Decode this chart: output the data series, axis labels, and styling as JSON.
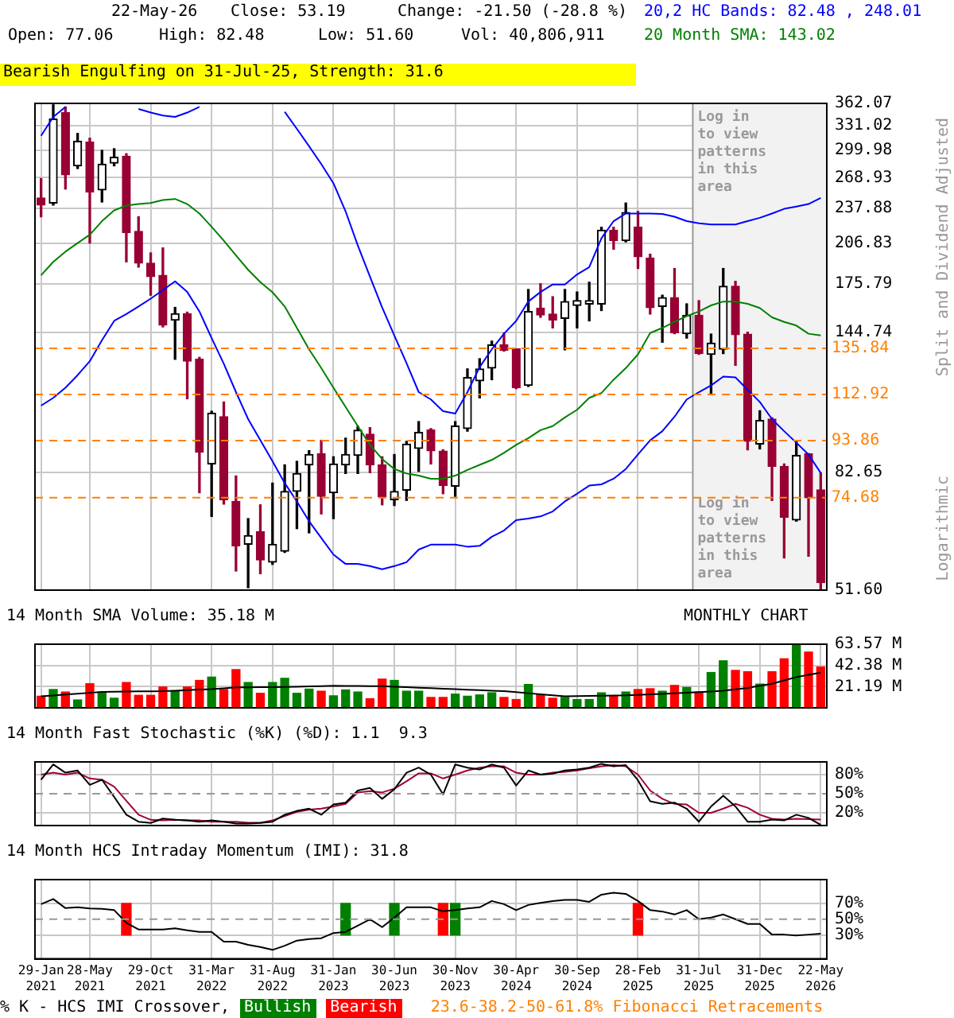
{
  "chart_data": [
    {
      "type": "candlestick",
      "categories": [
        "29-Jan 2021",
        null,
        null,
        null,
        "28-May 2021",
        null,
        null,
        null,
        null,
        "29-Oct 2021",
        null,
        null,
        null,
        null,
        "31-Mar 2022",
        null,
        null,
        null,
        null,
        "31-Aug 2022",
        null,
        null,
        null,
        null,
        "31-Jan 2023",
        null,
        null,
        null,
        null,
        "30-Jun 2023",
        null,
        null,
        null,
        null,
        "30-Nov 2023",
        null,
        null,
        null,
        null,
        "30-Apr 2024",
        null,
        null,
        null,
        null,
        "30-Sep 2024",
        null,
        null,
        null,
        null,
        "28-Feb 2025",
        null,
        null,
        null,
        null,
        "31-Jul 2025",
        null,
        null,
        null,
        null,
        "31-Dec 2025",
        null,
        null,
        null,
        null,
        "22-May 2026"
      ],
      "colors": [
        "#990033",
        "#000000",
        "#990033",
        "#000000",
        "#990033",
        "#000000",
        "#000000",
        "#990033",
        "#990033",
        "#990033",
        "#990033",
        "#000000",
        "#990033",
        "#990033",
        "#000000",
        "#990033",
        "#990033",
        "#000000",
        "#990033",
        "#000000",
        "#000000",
        "#000000",
        "#000000",
        "#990033",
        "#000000",
        "#000000",
        "#000000",
        "#990033",
        "#990033",
        "#000000",
        "#000000",
        "#000000",
        "#990033",
        "#990033",
        "#000000",
        "#000000",
        "#000000",
        "#000000",
        "#990033",
        "#990033",
        "#000000",
        "#990033",
        "#990033",
        "#000000",
        "#000000",
        "#000000",
        "#000000",
        "#990033",
        "#000000",
        "#990033",
        "#990033",
        "#000000",
        "#990033",
        "#000000",
        "#990033",
        "#000000",
        "#000000",
        "#990033",
        "#990033",
        "#000000",
        "#990033",
        "#990033",
        "#000000",
        "#990033",
        "#990033"
      ],
      "ohlc": [
        [
          248,
          268,
          230,
          241
        ],
        [
          243,
          360,
          241,
          340
        ],
        [
          349,
          357,
          257,
          272
        ],
        [
          282,
          321,
          279,
          311
        ],
        [
          310,
          315,
          207,
          254
        ],
        [
          256,
          300,
          244,
          284
        ],
        [
          285,
          302,
          282,
          292
        ],
        [
          293,
          296,
          192,
          216
        ],
        [
          217,
          230,
          188,
          191
        ],
        [
          191,
          199,
          168,
          181
        ],
        [
          182,
          203,
          148,
          149
        ],
        [
          152,
          160,
          130,
          156
        ],
        [
          156,
          157,
          111,
          129
        ],
        [
          130,
          131,
          76.2,
          89.6
        ],
        [
          85.5,
          105.6,
          69.3,
          104.8
        ],
        [
          103.3,
          109.6,
          72.8,
          74.1
        ],
        [
          73.6,
          81.5,
          55.7,
          61.6
        ],
        [
          62,
          68.7,
          52.1,
          64.2
        ],
        [
          65.2,
          72.6,
          55.1,
          58.2
        ],
        [
          57.7,
          79.2,
          57.2,
          62
        ],
        [
          60.3,
          85.2,
          60,
          76.6
        ],
        [
          76.6,
          86.4,
          66,
          82.3
        ],
        [
          85.2,
          90.2,
          64.9,
          88.8
        ],
        [
          89.1,
          94,
          70,
          75.1
        ],
        [
          76.2,
          88,
          68.7,
          85.5
        ],
        [
          85.2,
          94.8,
          82.3,
          88.8
        ],
        [
          88.5,
          99.4,
          82.3,
          97.9
        ],
        [
          96.3,
          98.9,
          82.6,
          85.2
        ],
        [
          85.2,
          88,
          72.6,
          74.9
        ],
        [
          74.1,
          88.8,
          72.4,
          76.6
        ],
        [
          77,
          93.6,
          73.9,
          92.6
        ],
        [
          91,
          101.3,
          83,
          97
        ],
        [
          98,
          98.5,
          85.5,
          90.1
        ],
        [
          90,
          90.5,
          75.9,
          78.4
        ],
        [
          78.2,
          101.3,
          75.1,
          99.5
        ],
        [
          98.5,
          125.1,
          97.5,
          120.9
        ],
        [
          119.3,
          130.3,
          111.4,
          125.1
        ],
        [
          125.5,
          139.8,
          119.8,
          137.7
        ],
        [
          137.7,
          144.4,
          134.3,
          134.8
        ],
        [
          135.5,
          135.5,
          115.6,
          116
        ],
        [
          117.1,
          171.9,
          116.6,
          157.4
        ],
        [
          159.6,
          175.9,
          153.8,
          155.2
        ],
        [
          155.8,
          167,
          147.4,
          152.2
        ],
        [
          153.1,
          171.9,
          135,
          163.8
        ],
        [
          161.3,
          170.2,
          147.4,
          164.4
        ],
        [
          162.2,
          177,
          151.6,
          164.4
        ],
        [
          162.2,
          220.5,
          158,
          218
        ],
        [
          218,
          220.5,
          202,
          209
        ],
        [
          209,
          243,
          208,
          234
        ],
        [
          220.5,
          235,
          187,
          196
        ],
        [
          195,
          198,
          155.8,
          159.9
        ],
        [
          160.6,
          168,
          139.2,
          166.4
        ],
        [
          166.4,
          187,
          144,
          144.6
        ],
        [
          144,
          162.3,
          141.5,
          155
        ],
        [
          155,
          164.4,
          132.6,
          133
        ],
        [
          132.6,
          143.8,
          113.1,
          138.7
        ],
        [
          135.3,
          187,
          133,
          174.2
        ],
        [
          174.2,
          177.6,
          126.9,
          143.5
        ],
        [
          143.8,
          144.9,
          90.5,
          93.6
        ],
        [
          92.6,
          105.8,
          90.8,
          101.8
        ],
        [
          102.3,
          102.9,
          73.9,
          84.7
        ],
        [
          84.7,
          85.5,
          58.7,
          69.1
        ],
        [
          68.3,
          93.6,
          68,
          88.5
        ],
        [
          89.1,
          89.1,
          59.1,
          74.69
        ],
        [
          77.06,
          82.48,
          51.6,
          53.19
        ]
      ],
      "series": [
        {
          "type": "line",
          "name": "20,2 HC Bands: 82.48 , 248.01",
          "color": "#0000ff",
          "values": [
            318,
            343,
            357,
            null,
            null,
            null,
            null,
            null,
            354,
            349,
            345,
            343,
            349,
            357,
            null,
            null,
            null,
            null,
            null,
            null,
            350,
            327,
            305,
            284,
            263,
            235,
            205,
            181,
            160,
            143,
            128,
            114,
            110.7,
            105.6,
            104.6,
            114,
            126,
            135.3,
            144,
            151.6,
            163.8,
            170.2,
            175.4,
            175.4,
            182.6,
            188,
            211,
            226,
            233,
            233,
            233,
            232.6,
            230,
            226,
            224,
            223,
            223,
            223,
            226,
            229,
            233,
            237.4,
            239.6,
            242,
            248.01
          ]
        },
        {
          "type": "line",
          "color": "#0000ff",
          "values": [
            108,
            111.4,
            116,
            122,
            129,
            140.3,
            151.6,
            155.8,
            160.6,
            165.7,
            171.5,
            177.6,
            170.2,
            157.4,
            141.5,
            127.7,
            114,
            102.3,
            94,
            86.4,
            79.2,
            73.6,
            68,
            63.6,
            59.5,
            57.3,
            57.3,
            56.8,
            56.1,
            56.8,
            57.7,
            60.7,
            61.9,
            61.9,
            61.9,
            61.4,
            61.6,
            63.9,
            65.5,
            68.3,
            68.7,
            69.3,
            70.7,
            73.6,
            75.9,
            78.4,
            78.8,
            80.6,
            83.8,
            88.8,
            94,
            97.5,
            103.3,
            110.7,
            114,
            117.1,
            121.3,
            120.9,
            115.1,
            109.6,
            102.3,
            97.5,
            93.1,
            88.8,
            82.48
          ]
        },
        {
          "type": "line",
          "name": "20 Month SMA: 143.02",
          "color": "#008000",
          "values": [
            182,
            192,
            200,
            207,
            214,
            226,
            236,
            240.5,
            242,
            243,
            246,
            247,
            242,
            233,
            221,
            209,
            197,
            186,
            177,
            170,
            160.6,
            147.4,
            135.3,
            125.5,
            116,
            107.4,
            99.5,
            92.3,
            87.2,
            83.8,
            82.3,
            81.6,
            80.6,
            80.6,
            81.6,
            83.5,
            85.2,
            86.9,
            89.4,
            92.3,
            94.8,
            97.9,
            99.5,
            103,
            106.2,
            111.4,
            113.6,
            119.8,
            125.5,
            132.6,
            144.4,
            147.4,
            151,
            154.5,
            157.4,
            161.3,
            163.8,
            163.8,
            162.3,
            159.6,
            153.8,
            151,
            148.8,
            144,
            143.02
          ]
        }
      ],
      "ylim": [
        51.6,
        362.07
      ],
      "log": true,
      "yticks": [
        362.07,
        331.02,
        299.98,
        268.93,
        237.88,
        206.83,
        175.79,
        144.74,
        82.65,
        {
          "value": 51.6,
          "label": "51.60"
        }
      ],
      "ref_lines": [
        {
          "axis": "y",
          "value": 135.84,
          "label": "135.84",
          "color": "#ff8000",
          "line_style": "dashed"
        },
        {
          "axis": "y",
          "value": 112.92,
          "label": "112.92",
          "color": "#ff8000",
          "line_style": "dashed"
        },
        {
          "axis": "y",
          "value": 93.86,
          "label": "93.86",
          "color": "#ff8000",
          "line_style": "dashed"
        },
        {
          "axis": "y",
          "value": 74.68,
          "label": "74.68",
          "color": "#ff8000",
          "line_style": "dashed"
        }
      ],
      "bands": [
        {
          "axis": "x",
          "from": "31-Jul 2025",
          "to": "22-May 2026",
          "label": "Log in to view patterns in this area",
          "color": "#f2f2f2"
        }
      ],
      "grid": true,
      "legend": "top right",
      "tick_labels": "y",
      "annotations": [
        "22-May-26",
        "Close: 53.19",
        "Change: -21.50 (-28.8 %)",
        "Open: 77.06",
        "High: 82.48",
        "Low: 51.60",
        "Vol: 40,806,911",
        "Bearish Engulfing on 31-Jul-25, Strength: 31.6",
        "Log in to view patterns in this area",
        "Split and Dividend Adjusted",
        "Logarithmic"
      ]
    },
    {
      "type": "bar",
      "categories": [
        "29-Jan 2021",
        null,
        null,
        null,
        "28-May 2021",
        null,
        null,
        null,
        null,
        "29-Oct 2021",
        null,
        null,
        null,
        null,
        "31-Mar 2022",
        null,
        null,
        null,
        null,
        "31-Aug 2022",
        null,
        null,
        null,
        null,
        "31-Jan 2023",
        null,
        null,
        null,
        null,
        "30-Jun 2023",
        null,
        null,
        null,
        null,
        "30-Nov 2023",
        null,
        null,
        null,
        null,
        "30-Apr 2024",
        null,
        null,
        null,
        null,
        "30-Sep 2024",
        null,
        null,
        null,
        null,
        "28-Feb 2025",
        null,
        null,
        null,
        null,
        "31-Jul 2025",
        null,
        null,
        null,
        null,
        "31-Dec 2025",
        null,
        null,
        null,
        null,
        "22-May 2026"
      ],
      "series": [
        {
          "type": "bar",
          "colors": [
            "#ff0000",
            "#008000",
            "#ff0000",
            "#008000",
            "#ff0000",
            "#008000",
            "#008000",
            "#ff0000",
            "#ff0000",
            "#ff0000",
            "#ff0000",
            "#008000",
            "#ff0000",
            "#ff0000",
            "#008000",
            "#ff0000",
            "#ff0000",
            "#008000",
            "#ff0000",
            "#008000",
            "#008000",
            "#008000",
            "#008000",
            "#ff0000",
            "#008000",
            "#008000",
            "#008000",
            "#ff0000",
            "#ff0000",
            "#008000",
            "#008000",
            "#008000",
            "#ff0000",
            "#ff0000",
            "#008000",
            "#008000",
            "#008000",
            "#008000",
            "#ff0000",
            "#ff0000",
            "#008000",
            "#ff0000",
            "#ff0000",
            "#008000",
            "#008000",
            "#008000",
            "#008000",
            "#ff0000",
            "#008000",
            "#ff0000",
            "#ff0000",
            "#008000",
            "#ff0000",
            "#008000",
            "#ff0000",
            "#008000",
            "#008000",
            "#ff0000",
            "#ff0000",
            "#008000",
            "#ff0000",
            "#ff0000",
            "#008000",
            "#ff0000",
            "#ff0000"
          ],
          "values": [
            11.6,
            18.3,
            15.8,
            7.9,
            24.1,
            15.8,
            9.6,
            25.3,
            12.5,
            12.5,
            20.8,
            16.6,
            20.8,
            27.4,
            30.7,
            18.3,
            38.2,
            25.3,
            14.5,
            25.3,
            29.5,
            14.5,
            18.7,
            16.6,
            12,
            17.9,
            15.8,
            9.1,
            28.7,
            27.4,
            16.6,
            16.6,
            10.4,
            10.4,
            13.7,
            11.6,
            12.9,
            15,
            10.4,
            8.3,
            23.3,
            12.9,
            9.6,
            10.4,
            8.3,
            8.3,
            15,
            11.6,
            15.8,
            18.3,
            19.1,
            16.6,
            22.4,
            20.4,
            15.8,
            35.3,
            47,
            37.4,
            36.1,
            23.7,
            36.1,
            49,
            63.2,
            55.7,
            40.81
          ]
        },
        {
          "type": "line",
          "name": "14 Month SMA Volume: 35.18 M",
          "color": "#000000",
          "values": [
            11.6,
            12.4,
            13.3,
            14.1,
            15,
            15.8,
            16,
            16.2,
            16.4,
            16.5,
            16.6,
            17.1,
            17.6,
            18.2,
            18.7,
            19.5,
            20.4,
            20.5,
            20.6,
            20.7,
            20.8,
            21.1,
            21.4,
            21.7,
            22,
            21.9,
            21.8,
            21.7,
            21.6,
            21.1,
            20.6,
            20.1,
            19.6,
            19.1,
            18.6,
            18.1,
            17.6,
            17.1,
            16.6,
            15.6,
            14.6,
            13.6,
            12.6,
            11.6,
            11.8,
            12,
            12.1,
            12.3,
            12.5,
            13,
            13.5,
            14,
            14.5,
            15,
            15.7,
            16.3,
            17,
            18.5,
            19.9,
            22,
            24.1,
            27.4,
            30.7,
            32.9,
            35.18
          ]
        }
      ],
      "ylim": [
        0,
        63.57
      ],
      "yticks": [
        {
          "value": 63.57,
          "label": "63.57 M"
        },
        {
          "value": 42.38,
          "label": "42.38 M"
        },
        {
          "value": 21.19,
          "label": "21.19 M"
        }
      ],
      "grid": true,
      "legend": "top left",
      "tick_labels": "y",
      "annotations": [
        "MONTHLY CHART"
      ]
    },
    {
      "type": "line",
      "title": "14 Month Fast Stochastic (%K) (%D): 1.1  9.3",
      "categories": [
        "29-Jan 2021",
        null,
        null,
        null,
        "28-May 2021",
        null,
        null,
        null,
        null,
        "29-Oct 2021",
        null,
        null,
        null,
        null,
        "31-Mar 2022",
        null,
        null,
        null,
        null,
        "31-Aug 2022",
        null,
        null,
        null,
        null,
        "31-Jan 2023",
        null,
        null,
        null,
        null,
        "30-Jun 2023",
        null,
        null,
        null,
        null,
        "30-Nov 2023",
        null,
        null,
        null,
        null,
        "30-Apr 2024",
        null,
        null,
        null,
        null,
        "30-Sep 2024",
        null,
        null,
        null,
        null,
        "28-Feb 2025",
        null,
        null,
        null,
        null,
        "31-Jul 2025",
        null,
        null,
        null,
        null,
        "31-Dec 2025",
        null,
        null,
        null,
        null,
        "22-May 2026"
      ],
      "series": [
        {
          "color": "#000000",
          "values": [
            72,
            96,
            83,
            86.5,
            64,
            72,
            45,
            17,
            6,
            4,
            11,
            9,
            8,
            6,
            8,
            6,
            3,
            3,
            4,
            6,
            17,
            23,
            26.5,
            17,
            33,
            36,
            55,
            59,
            42,
            57,
            83,
            91,
            80,
            49,
            96,
            91,
            88,
            96,
            91,
            63,
            86.5,
            80,
            81.5,
            86.5,
            88,
            91,
            97,
            93,
            95,
            71,
            38,
            34,
            36,
            26.5,
            6,
            30,
            47,
            30,
            6,
            6,
            9.5,
            8,
            17,
            12,
            1.1
          ]
        },
        {
          "color": "#a00040",
          "values": [
            80,
            83,
            80,
            83,
            74,
            72,
            61,
            39,
            17,
            9,
            8,
            9,
            8,
            8,
            6,
            6,
            6,
            4.5,
            4.5,
            8,
            15,
            21.5,
            25,
            26.5,
            30,
            34,
            52,
            54,
            52,
            58,
            69.5,
            82,
            82,
            74,
            80,
            86.5,
            91,
            93,
            93,
            83,
            80,
            80,
            83,
            84.5,
            86.5,
            90,
            93,
            95,
            93,
            80,
            55,
            42,
            34,
            33,
            20,
            20,
            26.5,
            34,
            28,
            17,
            10.7,
            9.5,
            10.7,
            10,
            9.3
          ]
        }
      ],
      "ylim": [
        0,
        100
      ],
      "yticks": [
        {
          "value": 80,
          "label": "80%"
        },
        {
          "value": 50,
          "label": "50%"
        },
        {
          "value": 20,
          "label": "20%"
        }
      ],
      "ref_lines": [
        {
          "axis": "y",
          "value": 50,
          "color": "#999999",
          "line_style": "dashed"
        }
      ],
      "grid": true,
      "tick_labels": "y"
    },
    {
      "type": "line",
      "title": "14 Month HCS Intraday Momentum (IMI): 31.8",
      "categories": [
        "29-Jan 2021",
        null,
        null,
        null,
        "28-May 2021",
        null,
        null,
        null,
        null,
        "29-Oct 2021",
        null,
        null,
        null,
        null,
        "31-Mar 2022",
        null,
        null,
        null,
        null,
        "31-Aug 2022",
        null,
        null,
        null,
        null,
        "31-Jan 2023",
        null,
        null,
        null,
        null,
        "30-Jun 2023",
        null,
        null,
        null,
        null,
        "30-Nov 2023",
        null,
        null,
        null,
        null,
        "30-Apr 2024",
        null,
        null,
        null,
        null,
        "30-Sep 2024",
        null,
        null,
        null,
        null,
        "28-Feb 2025",
        null,
        null,
        null,
        null,
        "31-Jul 2025",
        null,
        null,
        null,
        null,
        "31-Dec 2025",
        null,
        null,
        null,
        null,
        "22-May 2026"
      ],
      "series": [
        {
          "type": "line",
          "color": "#000000",
          "values": [
            69,
            75.5,
            64,
            65,
            63.5,
            63,
            61.5,
            45.5,
            37,
            37,
            37,
            38.4,
            36,
            34,
            34,
            21.6,
            21.6,
            17.7,
            15,
            11.3,
            16.5,
            23,
            25,
            26,
            32.6,
            34,
            42,
            50,
            40,
            52,
            65,
            65,
            65,
            60,
            61.5,
            63.5,
            65,
            73,
            69,
            61.5,
            68,
            70.6,
            73,
            74.5,
            74.5,
            72,
            81,
            83.5,
            82,
            73,
            61.5,
            59.7,
            56,
            61.5,
            50,
            52,
            56,
            50,
            44,
            44,
            30.6,
            30.6,
            29.4,
            30.6,
            31.8
          ]
        },
        {
          "type": "bar",
          "name": "Bullish",
          "color": "#008000",
          "base": [
            null,
            null,
            null,
            null,
            null,
            null,
            null,
            null,
            null,
            null,
            null,
            null,
            null,
            null,
            null,
            null,
            null,
            null,
            null,
            null,
            null,
            null,
            null,
            null,
            null,
            30,
            null,
            null,
            null,
            30,
            null,
            null,
            null,
            null,
            30,
            null,
            null,
            null,
            null,
            null,
            null,
            null,
            null,
            null,
            null,
            null,
            null,
            null,
            null,
            null,
            null,
            null,
            null,
            null,
            null,
            null,
            null,
            null,
            null,
            null,
            null,
            null,
            null,
            null,
            null
          ],
          "values": [
            null,
            null,
            null,
            null,
            null,
            null,
            null,
            null,
            null,
            null,
            null,
            null,
            null,
            null,
            null,
            null,
            null,
            null,
            null,
            null,
            null,
            null,
            null,
            null,
            null,
            40,
            null,
            null,
            null,
            40,
            null,
            null,
            null,
            null,
            40,
            null,
            null,
            null,
            null,
            null,
            null,
            null,
            null,
            null,
            null,
            null,
            null,
            null,
            null,
            null,
            null,
            null,
            null,
            null,
            null,
            null,
            null,
            null,
            null,
            null,
            null,
            null,
            null,
            null,
            null
          ]
        },
        {
          "type": "bar",
          "name": "Bearish",
          "color": "#ff0000",
          "base": [
            null,
            null,
            null,
            null,
            null,
            null,
            null,
            30,
            null,
            null,
            null,
            null,
            null,
            null,
            null,
            null,
            null,
            null,
            null,
            null,
            null,
            null,
            null,
            null,
            null,
            null,
            null,
            null,
            null,
            null,
            null,
            null,
            null,
            30,
            null,
            null,
            null,
            null,
            null,
            null,
            null,
            null,
            null,
            null,
            null,
            null,
            null,
            null,
            null,
            30,
            null,
            null,
            null,
            null,
            null,
            null,
            null,
            null,
            null,
            null,
            null,
            null,
            null,
            null,
            null
          ],
          "values": [
            null,
            null,
            null,
            null,
            null,
            null,
            null,
            40,
            null,
            null,
            null,
            null,
            null,
            null,
            null,
            null,
            null,
            null,
            null,
            null,
            null,
            null,
            null,
            null,
            null,
            null,
            null,
            null,
            null,
            null,
            null,
            null,
            null,
            40,
            null,
            null,
            null,
            null,
            null,
            null,
            null,
            null,
            null,
            null,
            null,
            null,
            null,
            null,
            null,
            40,
            null,
            null,
            null,
            null,
            null,
            null,
            null,
            null,
            null,
            null,
            null,
            null,
            null,
            null,
            null
          ]
        }
      ],
      "ylim": [
        0,
        100
      ],
      "yticks": [
        {
          "value": 70,
          "label": "70%"
        },
        {
          "value": 50,
          "label": "50%"
        },
        {
          "value": 30,
          "label": "30%"
        }
      ],
      "ref_lines": [
        {
          "axis": "y",
          "value": 50,
          "color": "#999999",
          "line_style": "dashed"
        }
      ],
      "grid": true,
      "legend": "bottom",
      "annotations": [
        "% K - HCS IMI Crossover,",
        "23.6-38.2-50-61.8% Fibonacci Retracements"
      ]
    }
  ]
}
